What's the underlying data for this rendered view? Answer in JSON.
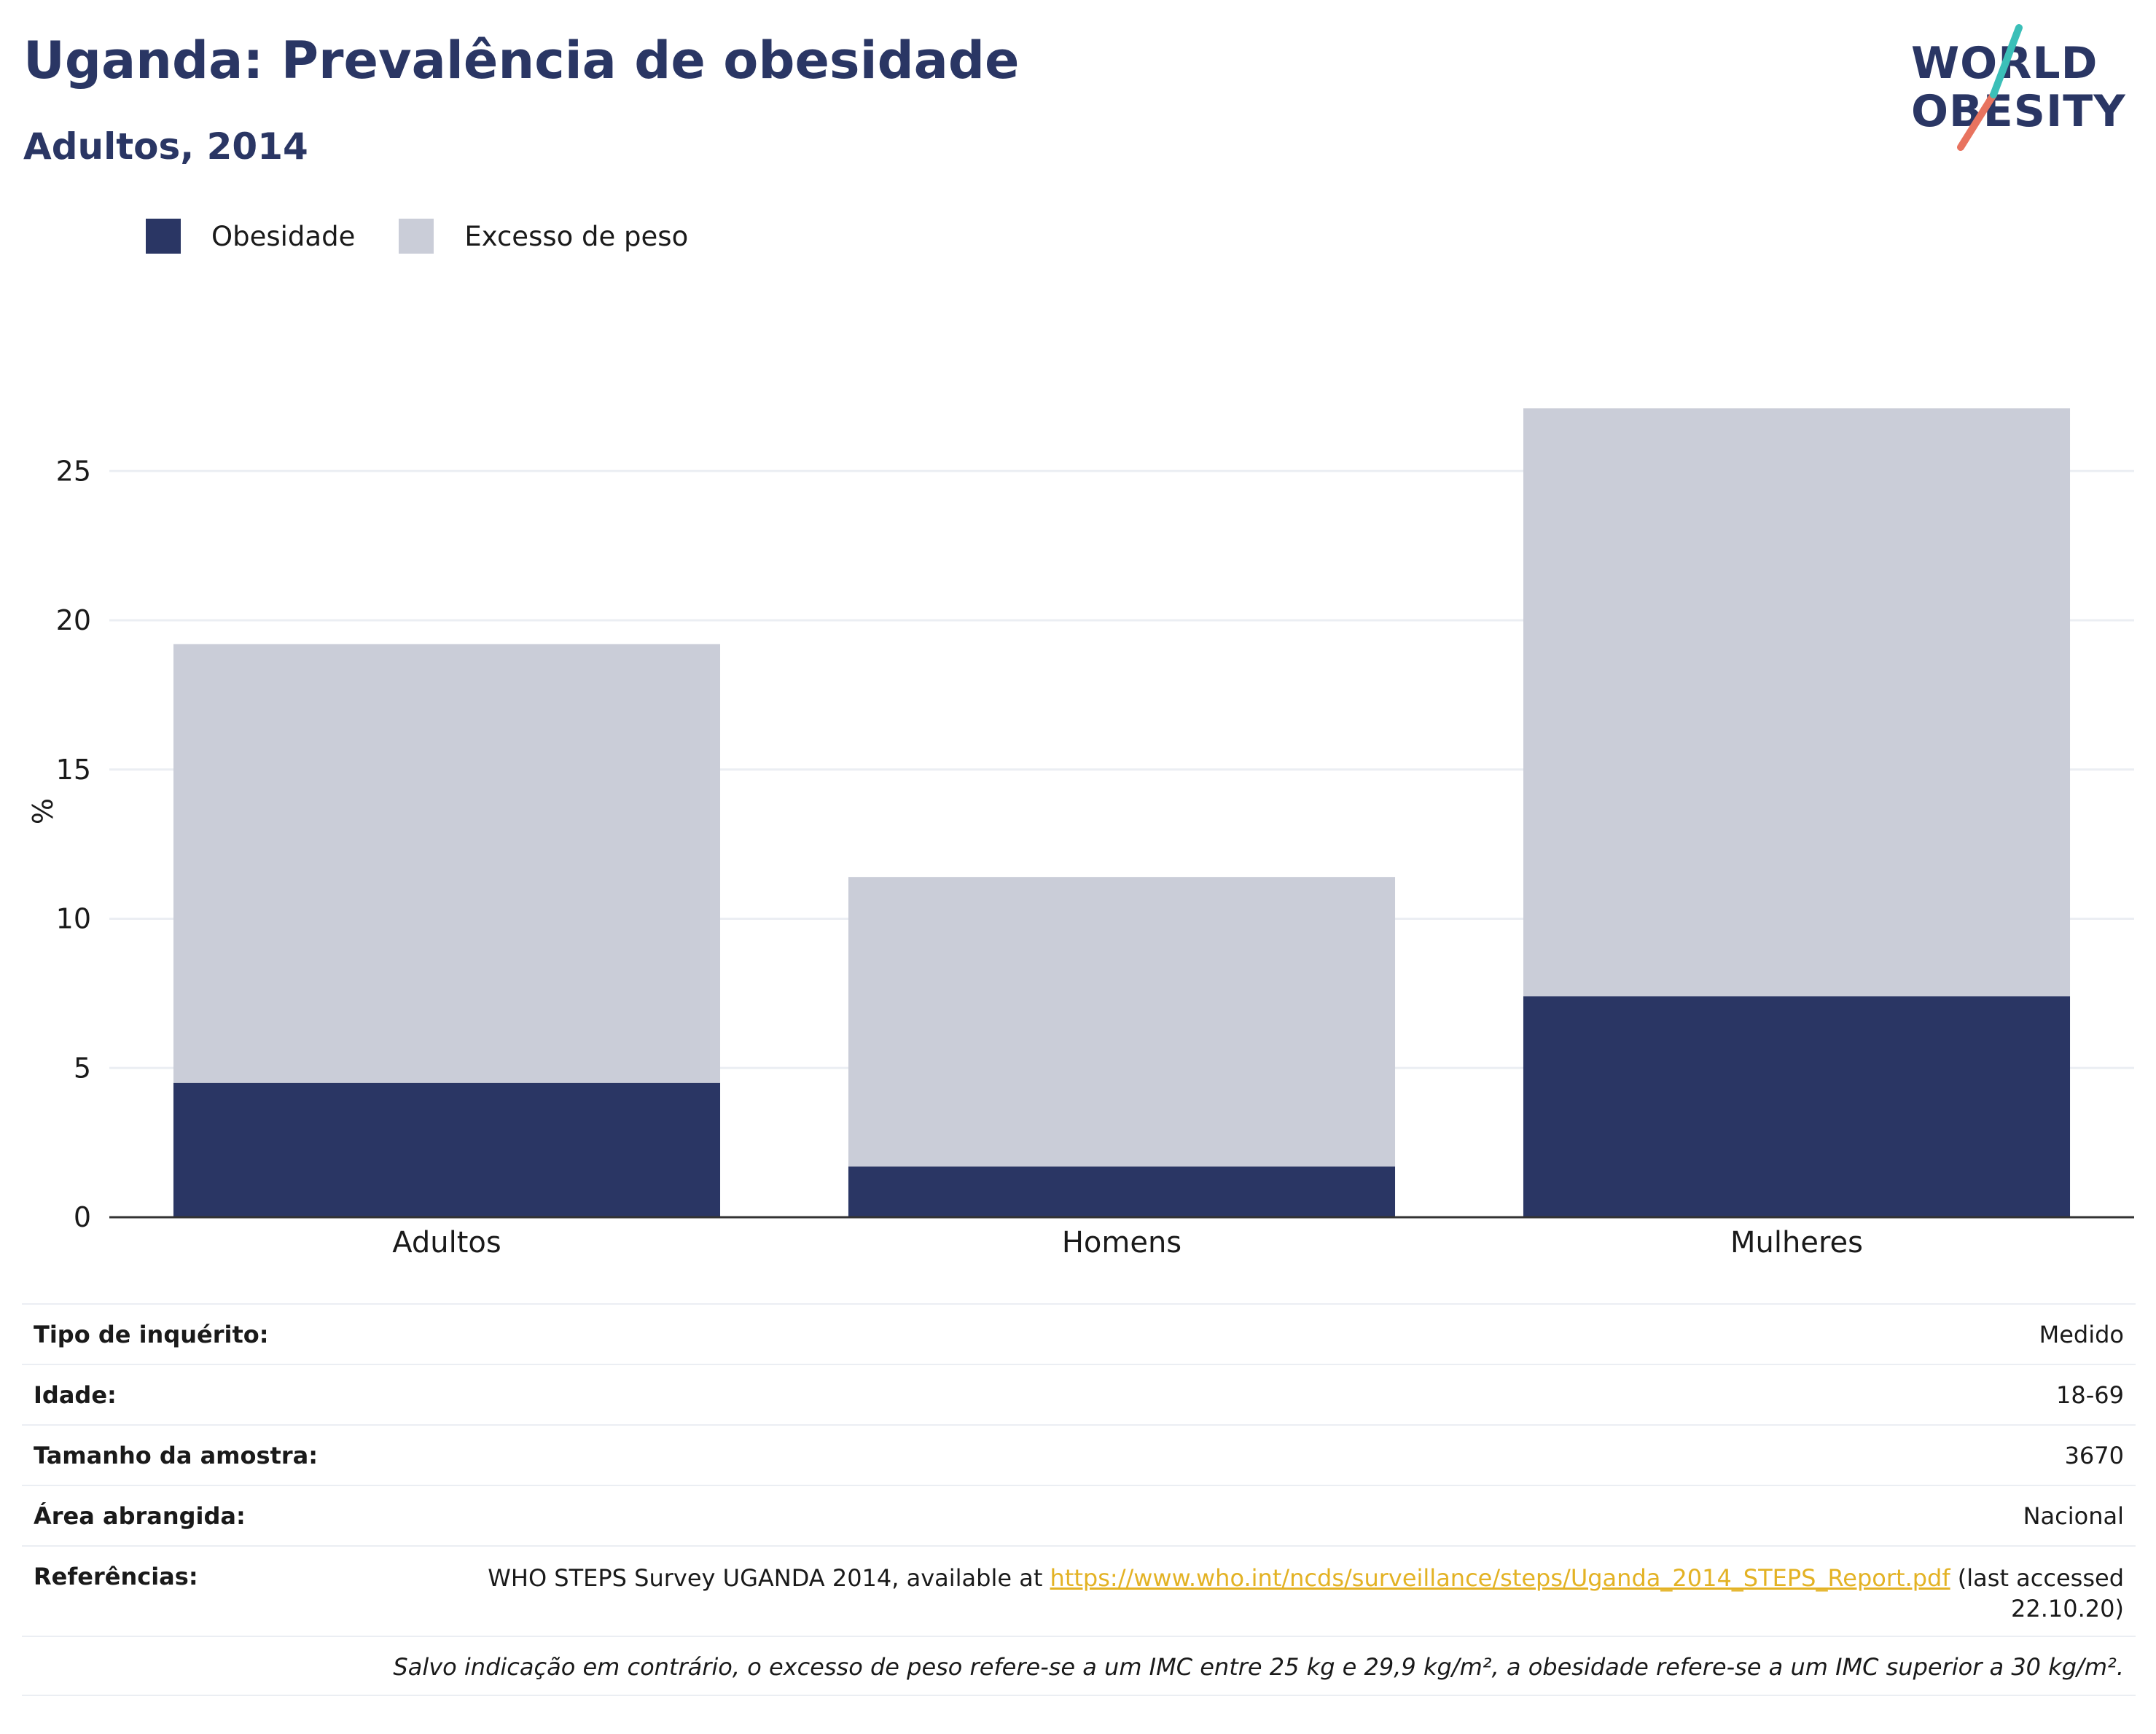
{
  "header": {
    "title": "Uganda: Prevalência de obesidade",
    "subtitle": "Adultos, 2014"
  },
  "logo": {
    "line1": "WORLD",
    "line2": "OBESITY",
    "slash_colors": [
      "#3bbfb8",
      "#e8735f"
    ]
  },
  "colors": {
    "obesity": "#2a3664",
    "overweight": "#cacdd8",
    "text": "#2a3664",
    "link": "#e3b224"
  },
  "chart_data": {
    "type": "bar",
    "stacked": true,
    "categories": [
      "Adultos",
      "Homens",
      "Mulheres"
    ],
    "series": [
      {
        "name": "Obesidade",
        "color": "#2a3664",
        "values": [
          4.5,
          1.7,
          7.4
        ]
      },
      {
        "name": "Excesso de peso",
        "color": "#cacdd8",
        "values": [
          14.7,
          9.7,
          19.7
        ]
      }
    ],
    "ylabel": "%",
    "ylim": [
      0,
      28
    ],
    "yticks": [
      0,
      5,
      10,
      15,
      20,
      25
    ],
    "grid": true,
    "legend": "top-left"
  },
  "info": {
    "rows": [
      {
        "label": "Tipo de inquérito:",
        "value": "Medido"
      },
      {
        "label": "Idade:",
        "value": "18-69"
      },
      {
        "label": "Tamanho da amostra:",
        "value": "3670"
      },
      {
        "label": "Área abrangida:",
        "value": "Nacional"
      }
    ],
    "references": {
      "label": "Referências:",
      "text_before": "WHO STEPS Survey UGANDA 2014, available at ",
      "link": "https://www.who.int/ncds/surveillance/steps/Uganda_2014_STEPS_Report.pdf",
      "text_after": " (last accessed 22.10.20)"
    },
    "note": "Salvo indicação em contrário, o excesso de peso refere-se a um IMC entre 25 kg e 29,9 kg/m², a obesidade refere-se a um IMC superior a 30 kg/m²."
  }
}
